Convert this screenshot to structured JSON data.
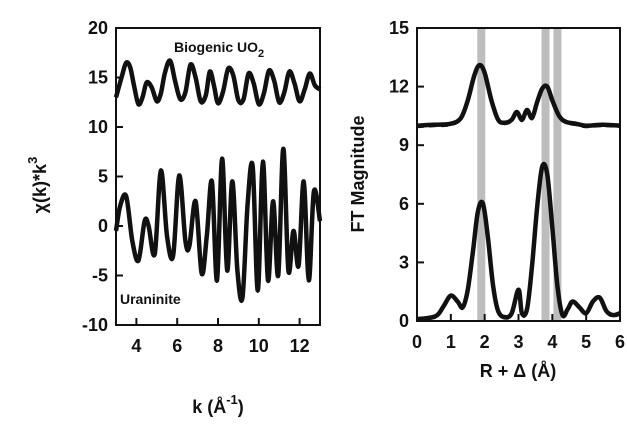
{
  "chart_data": [
    {
      "type": "line",
      "panel": "left",
      "xlabel": "k (Å",
      "xlabel_sup": "-1",
      "xlabel_close": ")",
      "ylabel": "χ(k)*k",
      "ylabel_sup": "3",
      "xlim": [
        3,
        13
      ],
      "ylim": [
        -10,
        20
      ],
      "x_ticks": [
        4,
        6,
        8,
        10,
        12
      ],
      "y_ticks": [
        -10,
        -5,
        0,
        5,
        10,
        15,
        20
      ],
      "grid": false,
      "annotations": {
        "biogenic": "Biogenic UO",
        "biogenic_sub": "2",
        "uraninite": "Uraninite"
      },
      "series": [
        {
          "label": "Biogenic UO2",
          "style": "data solid / fit dashed",
          "x": [
            3.0,
            3.3,
            3.5,
            3.7,
            3.9,
            4.1,
            4.3,
            4.5,
            4.75,
            5.0,
            5.2,
            5.4,
            5.65,
            5.9,
            6.15,
            6.4,
            6.65,
            6.9,
            7.15,
            7.4,
            7.6,
            7.8,
            8.0,
            8.25,
            8.5,
            8.75,
            9.0,
            9.25,
            9.5,
            9.75,
            10.0,
            10.25,
            10.5,
            10.75,
            11.0,
            11.25,
            11.5,
            11.75,
            12.0,
            12.25,
            12.5,
            12.75,
            13.0
          ],
          "y": [
            13.0,
            15.2,
            16.5,
            16.0,
            14.0,
            12.3,
            13.0,
            14.5,
            14.0,
            12.6,
            13.4,
            15.5,
            16.7,
            14.6,
            12.8,
            13.5,
            16.3,
            15.0,
            12.6,
            13.2,
            15.6,
            14.2,
            12.4,
            13.6,
            15.9,
            15.2,
            12.7,
            12.8,
            15.4,
            14.4,
            12.3,
            13.4,
            15.7,
            14.7,
            12.5,
            13.5,
            15.6,
            14.4,
            12.6,
            13.8,
            15.4,
            14.2,
            13.8
          ]
        },
        {
          "label": "Uraninite",
          "style": "data solid / fit dashed",
          "x": [
            3.0,
            3.2,
            3.5,
            3.8,
            4.1,
            4.4,
            4.6,
            4.9,
            5.2,
            5.5,
            5.8,
            6.1,
            6.4,
            6.6,
            6.9,
            7.2,
            7.45,
            7.7,
            7.95,
            8.2,
            8.45,
            8.7,
            8.95,
            9.2,
            9.45,
            9.7,
            9.95,
            10.2,
            10.45,
            10.7,
            10.95,
            11.2,
            11.45,
            11.7,
            11.95,
            12.2,
            12.45,
            12.7,
            13.0
          ],
          "y": [
            -0.5,
            2.0,
            3.0,
            -1.5,
            -3.5,
            0.5,
            0.0,
            -2.8,
            5.6,
            -1.0,
            -3.0,
            5.1,
            -1.5,
            -2.0,
            2.5,
            -4.8,
            -1.0,
            4.5,
            -5.5,
            6.8,
            -4.5,
            4.5,
            -4.5,
            -7.2,
            2.2,
            6.0,
            -6.5,
            6.5,
            -5.5,
            2.5,
            -5.0,
            7.8,
            -4.5,
            -0.5,
            -4.0,
            4.5,
            -5.5,
            3.5,
            0.5
          ]
        }
      ]
    },
    {
      "type": "line",
      "panel": "right",
      "xlabel": "R + Δ (Å)",
      "ylabel": "FT Magnitude",
      "xlim": [
        0,
        6
      ],
      "ylim": [
        0,
        15
      ],
      "x_ticks": [
        0,
        1,
        2,
        3,
        4,
        5,
        6
      ],
      "y_ticks": [
        0,
        3,
        6,
        9,
        12,
        15
      ],
      "grid": false,
      "reference_lines_x": [
        1.9,
        3.8,
        4.15
      ],
      "reference_line_color": "#bdbdbd",
      "series": [
        {
          "label": "Biogenic UO2",
          "style": "data solid / fit dashed",
          "x": [
            0.0,
            0.5,
            1.0,
            1.3,
            1.5,
            1.7,
            1.85,
            2.0,
            2.2,
            2.4,
            2.6,
            2.8,
            2.95,
            3.1,
            3.25,
            3.4,
            3.55,
            3.7,
            3.85,
            4.0,
            4.2,
            4.4,
            4.7,
            5.0,
            5.5,
            6.0
          ],
          "y": [
            10.0,
            10.05,
            10.1,
            10.4,
            11.3,
            12.6,
            13.1,
            12.7,
            11.3,
            10.3,
            10.15,
            10.3,
            10.7,
            10.3,
            10.8,
            10.4,
            11.2,
            11.9,
            12.0,
            11.3,
            10.5,
            10.2,
            10.1,
            10.0,
            10.05,
            10.0
          ]
        },
        {
          "label": "Uraninite",
          "style": "data solid / fit dashed",
          "x": [
            0.0,
            0.3,
            0.6,
            0.8,
            1.0,
            1.2,
            1.35,
            1.5,
            1.65,
            1.8,
            1.95,
            2.1,
            2.25,
            2.4,
            2.6,
            2.8,
            3.0,
            3.1,
            3.25,
            3.4,
            3.55,
            3.7,
            3.85,
            4.0,
            4.15,
            4.3,
            4.45,
            4.6,
            4.8,
            5.0,
            5.2,
            5.4,
            5.6,
            5.8,
            6.0
          ],
          "y": [
            0.1,
            0.15,
            0.3,
            0.8,
            1.3,
            1.0,
            0.7,
            1.6,
            3.5,
            5.6,
            6.0,
            4.2,
            1.8,
            0.5,
            0.2,
            0.4,
            1.6,
            0.4,
            0.6,
            2.8,
            5.8,
            7.9,
            7.5,
            4.8,
            1.8,
            0.3,
            0.6,
            1.0,
            0.7,
            0.4,
            1.0,
            1.2,
            0.5,
            0.3,
            0.4
          ]
        }
      ]
    }
  ]
}
